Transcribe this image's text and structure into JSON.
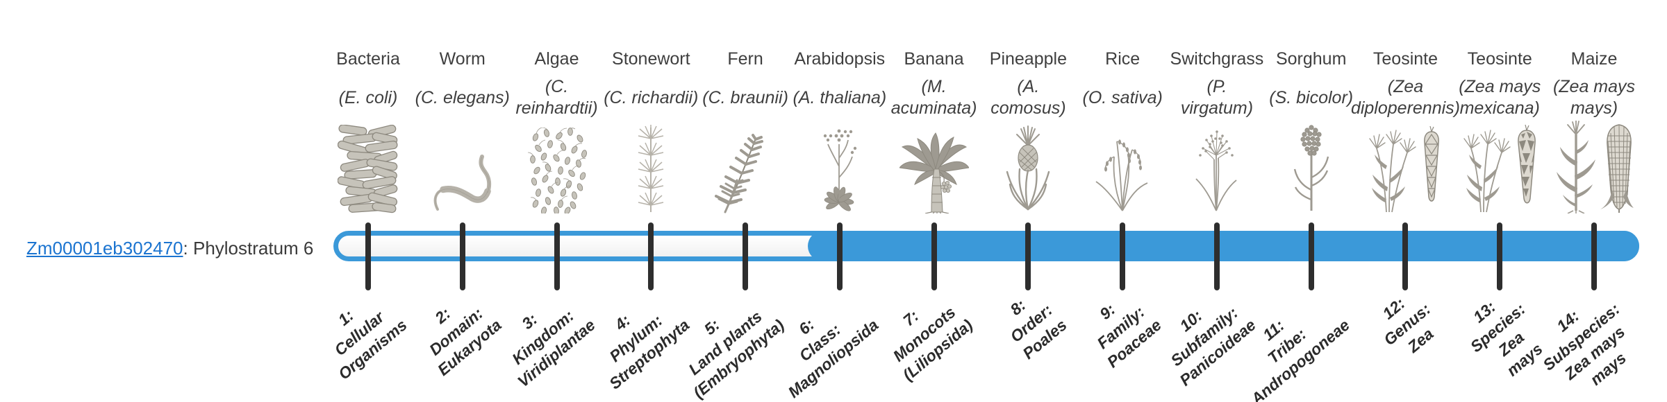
{
  "gene": {
    "id": "Zm00001eb302470",
    "annotation": ": Phylostratum 6"
  },
  "colors": {
    "bar_fill": "#3b99d9",
    "bar_border": "#3b99d9",
    "bar_track": "#fafafa",
    "tick": "#2e2e2e",
    "link": "#1b74d0",
    "text": "#3f3f3f",
    "stratum_text": "#2b2b2b"
  },
  "bar": {
    "filled_from_stratum": 6,
    "total_strata": 14
  },
  "organisms": [
    {
      "common": "Bacteria",
      "scientific_lines": [
        "(E. coli)"
      ],
      "icon": "bacteria-icon",
      "stratum_lines": [
        "1:",
        "Cellular",
        "Organisms"
      ]
    },
    {
      "common": "Worm",
      "scientific_lines": [
        "(C. elegans)"
      ],
      "icon": "worm-icon",
      "stratum_lines": [
        "2:",
        "Domain:",
        "Eukaryota"
      ]
    },
    {
      "common": "Algae",
      "scientific_lines": [
        "(C.",
        "reinhardtii)"
      ],
      "icon": "algae-icon",
      "stratum_lines": [
        "3:",
        "Kingdom:",
        "Viridiplantae"
      ]
    },
    {
      "common": "Stonewort",
      "scientific_lines": [
        "(C. richardii)"
      ],
      "icon": "stonewort-icon",
      "stratum_lines": [
        "4:",
        "Phylum:",
        "Streptophyta"
      ]
    },
    {
      "common": "Fern",
      "scientific_lines": [
        "(C. braunii)"
      ],
      "icon": "fern-icon",
      "stratum_lines": [
        "5:",
        "Land plants",
        "(Embryophyta)"
      ]
    },
    {
      "common": "Arabidopsis",
      "scientific_lines": [
        "(A. thaliana)"
      ],
      "icon": "arabidopsis-icon",
      "stratum_lines": [
        "6:",
        "Class:",
        "Magnoliopsida"
      ]
    },
    {
      "common": "Banana",
      "scientific_lines": [
        "(M.",
        "acuminata)"
      ],
      "icon": "banana-icon",
      "stratum_lines": [
        "7:",
        "Monocots",
        "(Liliopsida)"
      ]
    },
    {
      "common": "Pineapple",
      "scientific_lines": [
        "(A.",
        "comosus)"
      ],
      "icon": "pineapple-icon",
      "stratum_lines": [
        "8:",
        "Order:",
        "Poales"
      ]
    },
    {
      "common": "Rice",
      "scientific_lines": [
        "(O. sativa)"
      ],
      "icon": "rice-icon",
      "stratum_lines": [
        "9:",
        "Family:",
        "Poaceae"
      ]
    },
    {
      "common": "Switchgrass",
      "scientific_lines": [
        "(P.",
        "virgatum)"
      ],
      "icon": "switchgrass-icon",
      "stratum_lines": [
        "10:",
        "Subfamily:",
        "Panicoideae"
      ]
    },
    {
      "common": "Sorghum",
      "scientific_lines": [
        "(S. bicolor)"
      ],
      "icon": "sorghum-icon",
      "stratum_lines": [
        "11:",
        "Tribe:",
        "Andropogoneae"
      ]
    },
    {
      "common": "Teosinte",
      "scientific_lines": [
        "(Zea",
        "diploperennis)"
      ],
      "icon": "teosinte-diploperennis-icon",
      "stratum_lines": [
        "12:",
        "Genus:",
        "Zea"
      ]
    },
    {
      "common": "Teosinte",
      "scientific_lines": [
        "(Zea mays",
        "mexicana)"
      ],
      "icon": "teosinte-mexicana-icon",
      "stratum_lines": [
        "13:",
        "Species:",
        "Zea",
        "mays"
      ]
    },
    {
      "common": "Maize",
      "scientific_lines": [
        "(Zea mays",
        "mays)"
      ],
      "icon": "maize-icon",
      "stratum_lines": [
        "14:",
        "Subspecies:",
        "Zea mays",
        "mays"
      ]
    }
  ]
}
